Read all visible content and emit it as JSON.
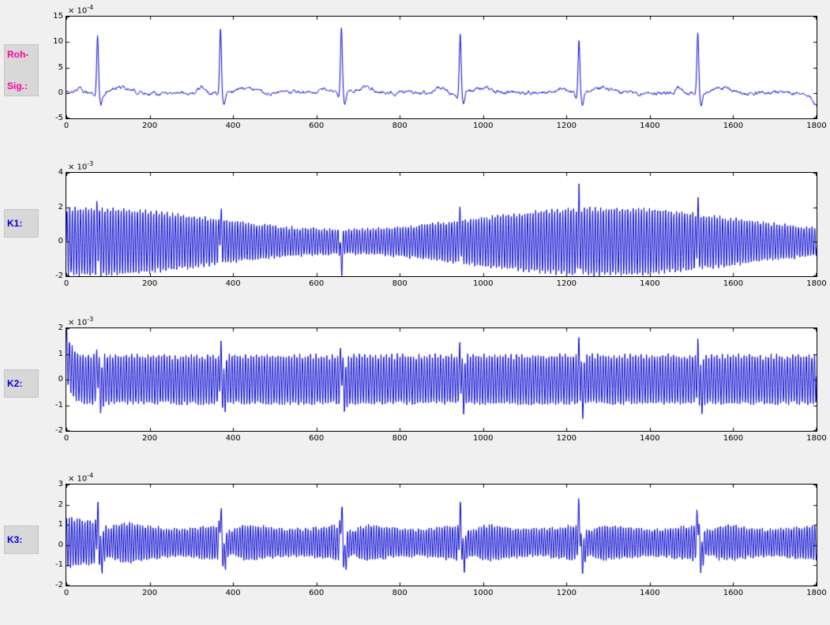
{
  "figure": {
    "background": "#f0f0f0",
    "plot_background": "#ffffff",
    "axis_color": "#000000",
    "line_color": "#0000cc"
  },
  "chart_data": [
    {
      "id": "roh_sig",
      "type": "line",
      "name": "Roh-Sig.:",
      "panel_label_lines": [
        "Roh-",
        "Sig.:"
      ],
      "label_color": "#ff0099",
      "x_range": [
        0,
        1800
      ],
      "xticks": [
        0,
        200,
        400,
        600,
        800,
        1000,
        1200,
        1400,
        1600,
        1800
      ],
      "ylim": [
        -5,
        15
      ],
      "yticks": [
        -5,
        0,
        5,
        10,
        15
      ],
      "y_scale_label": {
        "base": "× 10",
        "power": "-4"
      },
      "description": "Raw ECG signal: flat noisy baseline with sharp QRS spikes, small P and T waves",
      "signal": {
        "kind": "ecg",
        "beats": [
          75,
          370,
          660,
          945,
          1230,
          1515
        ],
        "r_amps": [
          11.5,
          12.3,
          12.8,
          11.6,
          11.0,
          11.9
        ],
        "p_amp": 0.9,
        "q_amp": -0.8,
        "s_amp": -2.4,
        "t_amp": 1.1,
        "noise": 0.45,
        "end_dip": -2.4
      }
    },
    {
      "id": "k1",
      "type": "line",
      "name": "K1:",
      "panel_label_lines": [
        "K1:"
      ],
      "label_color": "#0000dd",
      "x_range": [
        0,
        1800
      ],
      "xticks": [
        0,
        200,
        400,
        600,
        800,
        1000,
        1200,
        1400,
        1600,
        1800
      ],
      "ylim": [
        -2,
        4
      ],
      "yticks": [
        -2,
        0,
        2,
        4
      ],
      "y_scale_label": {
        "base": "× 10",
        "power": "-3"
      },
      "description": "High-frequency oscillation with slow sinusoidal amplitude modulation and spikes at beat positions",
      "signal": {
        "kind": "osc",
        "period": 6.5,
        "phase": 0,
        "amp_base": 1.35,
        "amp_cos": {
          "amp": 0.62,
          "period": 1250,
          "shift": 40
        },
        "spikes": {
          "centers": [
            75,
            370,
            660,
            945,
            1230,
            1515
          ],
          "amps": [
            0.9,
            1.2,
            -1.5,
            1.0,
            1.4,
            1.2
          ],
          "width": 2.5
        },
        "noise": 0.08
      }
    },
    {
      "id": "k2",
      "type": "line",
      "name": "K2:",
      "panel_label_lines": [
        "K2:"
      ],
      "label_color": "#0000dd",
      "x_range": [
        0,
        1800
      ],
      "xticks": [
        0,
        200,
        400,
        600,
        800,
        1000,
        1200,
        1400,
        1600,
        1800
      ],
      "ylim": [
        -2,
        2
      ],
      "yticks": [
        -2,
        -1,
        0,
        1,
        2
      ],
      "y_scale_label": {
        "base": "× 10",
        "power": "-3"
      },
      "description": "Constant-amplitude high-frequency oscillation with initial transient and small spikes at beat positions",
      "signal": {
        "kind": "osc",
        "period": 6.5,
        "phase": 0.6,
        "amp_base": 0.95,
        "transient": {
          "amp": 1.05,
          "tau": 12
        },
        "spikes": {
          "centers": [
            75,
            370,
            660,
            945,
            1230,
            1515
          ],
          "amps": [
            0.65,
            0.75,
            0.75,
            0.65,
            0.85,
            0.7
          ],
          "width": 2.5
        },
        "neg_spikes": {
          "offset": 9,
          "amps": [
            -0.45,
            -0.5,
            -0.5,
            -0.45,
            -0.55,
            -0.5
          ],
          "width": 4
        },
        "noise": 0.07
      }
    },
    {
      "id": "k3",
      "type": "line",
      "name": "K3:",
      "panel_label_lines": [
        "K3:"
      ],
      "label_color": "#0000dd",
      "x_range": [
        0,
        1800
      ],
      "xticks": [
        0,
        200,
        400,
        600,
        800,
        1000,
        1200,
        1400,
        1600,
        1800
      ],
      "ylim": [
        -2,
        3
      ],
      "yticks": [
        -2,
        -1,
        0,
        1,
        2,
        3
      ],
      "y_scale_label": {
        "base": "× 10",
        "power": "-4"
      },
      "description": "High-frequency oscillation with decaying initial amplitude, per-beat envelope modulation and spikes at beat positions",
      "signal": {
        "kind": "osc",
        "period": 6.3,
        "phase": 1.0,
        "amp_base": 0.8,
        "amp_exp": {
          "amp": 0.6,
          "tau": 80
        },
        "amp_beat_sin": {
          "amp": 0.12,
          "period": 285,
          "shift": 50
        },
        "offset": 0.12,
        "spikes": {
          "centers": [
            75,
            370,
            660,
            945,
            1230,
            1515
          ],
          "amps": [
            1.2,
            1.5,
            1.6,
            1.3,
            1.5,
            1.4
          ],
          "width": 3
        },
        "neg_spikes": {
          "offset": 9,
          "amps": [
            -0.7,
            -0.8,
            -0.85,
            -0.7,
            -0.8,
            -0.75
          ],
          "width": 5
        },
        "post_beat_damp": {
          "amount": 0.3,
          "offset": 28,
          "width": 20
        },
        "noise": 0.06
      }
    }
  ]
}
